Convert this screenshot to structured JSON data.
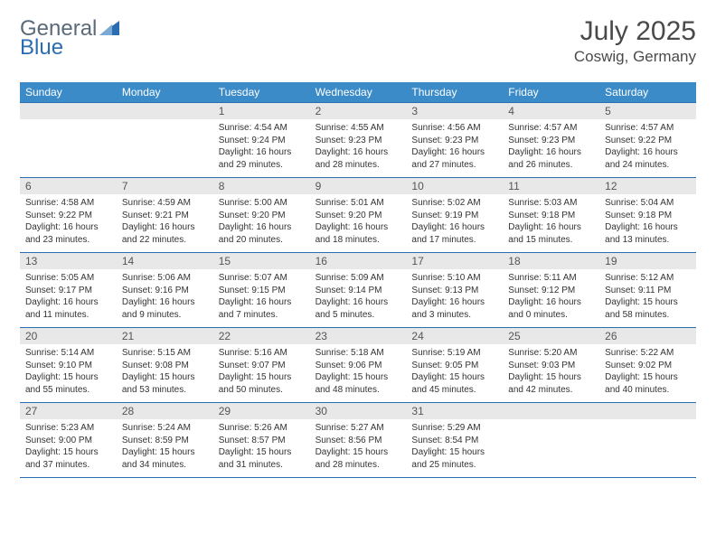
{
  "logo": {
    "text1": "General",
    "text2": "Blue"
  },
  "title": "July 2025",
  "location": "Coswig, Germany",
  "colors": {
    "header_bg": "#3b8bc8",
    "header_text": "#ffffff",
    "border": "#2a6db0",
    "daynum_bg": "#e8e8e8",
    "text": "#333333"
  },
  "day_names": [
    "Sunday",
    "Monday",
    "Tuesday",
    "Wednesday",
    "Thursday",
    "Friday",
    "Saturday"
  ],
  "weeks": [
    [
      null,
      null,
      {
        "n": "1",
        "sr": "4:54 AM",
        "ss": "9:24 PM",
        "dl": "16 hours and 29 minutes."
      },
      {
        "n": "2",
        "sr": "4:55 AM",
        "ss": "9:23 PM",
        "dl": "16 hours and 28 minutes."
      },
      {
        "n": "3",
        "sr": "4:56 AM",
        "ss": "9:23 PM",
        "dl": "16 hours and 27 minutes."
      },
      {
        "n": "4",
        "sr": "4:57 AM",
        "ss": "9:23 PM",
        "dl": "16 hours and 26 minutes."
      },
      {
        "n": "5",
        "sr": "4:57 AM",
        "ss": "9:22 PM",
        "dl": "16 hours and 24 minutes."
      }
    ],
    [
      {
        "n": "6",
        "sr": "4:58 AM",
        "ss": "9:22 PM",
        "dl": "16 hours and 23 minutes."
      },
      {
        "n": "7",
        "sr": "4:59 AM",
        "ss": "9:21 PM",
        "dl": "16 hours and 22 minutes."
      },
      {
        "n": "8",
        "sr": "5:00 AM",
        "ss": "9:20 PM",
        "dl": "16 hours and 20 minutes."
      },
      {
        "n": "9",
        "sr": "5:01 AM",
        "ss": "9:20 PM",
        "dl": "16 hours and 18 minutes."
      },
      {
        "n": "10",
        "sr": "5:02 AM",
        "ss": "9:19 PM",
        "dl": "16 hours and 17 minutes."
      },
      {
        "n": "11",
        "sr": "5:03 AM",
        "ss": "9:18 PM",
        "dl": "16 hours and 15 minutes."
      },
      {
        "n": "12",
        "sr": "5:04 AM",
        "ss": "9:18 PM",
        "dl": "16 hours and 13 minutes."
      }
    ],
    [
      {
        "n": "13",
        "sr": "5:05 AM",
        "ss": "9:17 PM",
        "dl": "16 hours and 11 minutes."
      },
      {
        "n": "14",
        "sr": "5:06 AM",
        "ss": "9:16 PM",
        "dl": "16 hours and 9 minutes."
      },
      {
        "n": "15",
        "sr": "5:07 AM",
        "ss": "9:15 PM",
        "dl": "16 hours and 7 minutes."
      },
      {
        "n": "16",
        "sr": "5:09 AM",
        "ss": "9:14 PM",
        "dl": "16 hours and 5 minutes."
      },
      {
        "n": "17",
        "sr": "5:10 AM",
        "ss": "9:13 PM",
        "dl": "16 hours and 3 minutes."
      },
      {
        "n": "18",
        "sr": "5:11 AM",
        "ss": "9:12 PM",
        "dl": "16 hours and 0 minutes."
      },
      {
        "n": "19",
        "sr": "5:12 AM",
        "ss": "9:11 PM",
        "dl": "15 hours and 58 minutes."
      }
    ],
    [
      {
        "n": "20",
        "sr": "5:14 AM",
        "ss": "9:10 PM",
        "dl": "15 hours and 55 minutes."
      },
      {
        "n": "21",
        "sr": "5:15 AM",
        "ss": "9:08 PM",
        "dl": "15 hours and 53 minutes."
      },
      {
        "n": "22",
        "sr": "5:16 AM",
        "ss": "9:07 PM",
        "dl": "15 hours and 50 minutes."
      },
      {
        "n": "23",
        "sr": "5:18 AM",
        "ss": "9:06 PM",
        "dl": "15 hours and 48 minutes."
      },
      {
        "n": "24",
        "sr": "5:19 AM",
        "ss": "9:05 PM",
        "dl": "15 hours and 45 minutes."
      },
      {
        "n": "25",
        "sr": "5:20 AM",
        "ss": "9:03 PM",
        "dl": "15 hours and 42 minutes."
      },
      {
        "n": "26",
        "sr": "5:22 AM",
        "ss": "9:02 PM",
        "dl": "15 hours and 40 minutes."
      }
    ],
    [
      {
        "n": "27",
        "sr": "5:23 AM",
        "ss": "9:00 PM",
        "dl": "15 hours and 37 minutes."
      },
      {
        "n": "28",
        "sr": "5:24 AM",
        "ss": "8:59 PM",
        "dl": "15 hours and 34 minutes."
      },
      {
        "n": "29",
        "sr": "5:26 AM",
        "ss": "8:57 PM",
        "dl": "15 hours and 31 minutes."
      },
      {
        "n": "30",
        "sr": "5:27 AM",
        "ss": "8:56 PM",
        "dl": "15 hours and 28 minutes."
      },
      {
        "n": "31",
        "sr": "5:29 AM",
        "ss": "8:54 PM",
        "dl": "15 hours and 25 minutes."
      },
      null,
      null
    ]
  ],
  "labels": {
    "sunrise": "Sunrise:",
    "sunset": "Sunset:",
    "daylight": "Daylight:"
  }
}
